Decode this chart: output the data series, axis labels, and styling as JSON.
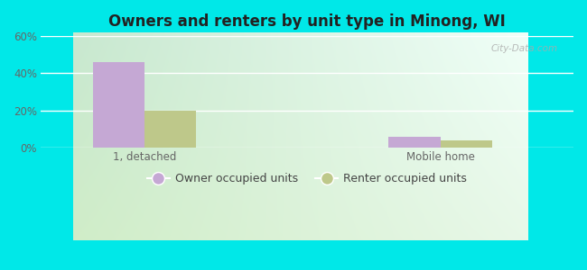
{
  "title": "Owners and renters by unit type in Minong, WI",
  "categories": [
    "1, detached",
    "Mobile home"
  ],
  "owner_values": [
    46,
    6
  ],
  "renter_values": [
    20,
    4
  ],
  "owner_color": "#c5a8d4",
  "renter_color": "#bec88a",
  "ylim": [
    0,
    60
  ],
  "yticks": [
    0,
    20,
    40,
    60
  ],
  "ytick_labels": [
    "0%",
    "20%",
    "40%",
    "60%"
  ],
  "grad_top_left": "#c8e8c8",
  "grad_top_right": "#e8f8f0",
  "grad_bottom_left": "#d8f0d0",
  "grad_bottom_right": "#f0fdf5",
  "outer_bg": "#00e8e8",
  "bar_width": 0.35,
  "legend_owner": "Owner occupied units",
  "legend_renter": "Renter occupied units",
  "watermark": "City-Data.com",
  "group_positions": [
    1.0,
    3.0
  ],
  "xlim": [
    0.3,
    3.9
  ]
}
